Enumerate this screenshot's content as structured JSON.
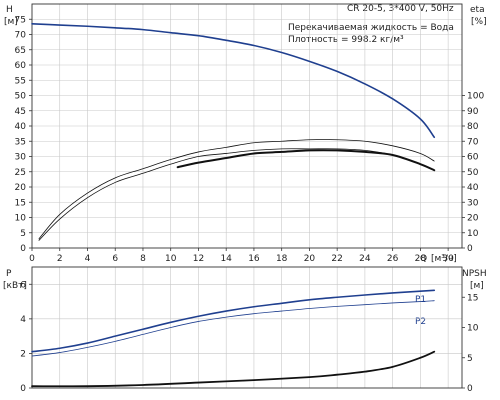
{
  "chart_data": [
    {
      "type": "line",
      "title": "CR 20-5, 3*400 V, 50Hz",
      "annotations": [
        "Перекачиваемая жидкость = Вода",
        "Плотность = 998.2 кг/м³"
      ],
      "xlabel": "Q",
      "xunit": "[м³/ч]",
      "ylabel_left": "H",
      "yunit_left": "[м]",
      "ylabel_right": "eta",
      "yunit_right": "[%]",
      "xlim": [
        0,
        31
      ],
      "ylim_left": [
        0,
        80
      ],
      "ylim_right": [
        0,
        160
      ],
      "x_ticks": [
        0,
        2,
        4,
        6,
        8,
        10,
        12,
        14,
        16,
        18,
        20,
        22,
        24,
        26,
        28,
        30
      ],
      "y_ticks_left": [
        0,
        5,
        10,
        15,
        20,
        25,
        30,
        35,
        40,
        45,
        50,
        55,
        60,
        65,
        70,
        75
      ],
      "y_ticks_right": [
        0,
        10,
        20,
        30,
        40,
        50,
        60,
        70,
        80,
        90,
        100
      ],
      "grid": true,
      "colors": {
        "head": "#1f3f8f",
        "efficiency": "#111111",
        "grid": "#c8c8c8"
      },
      "series": [
        {
          "axis": "left",
          "color": "#1f3f8f",
          "width": 1.6,
          "x": [
            0,
            2,
            4,
            6,
            8,
            10,
            12,
            14,
            16,
            18,
            20,
            22,
            24,
            26,
            28,
            29
          ],
          "y": [
            73.5,
            73.1,
            72.7,
            72.2,
            71.6,
            70.6,
            69.6,
            68.1,
            66.4,
            64.1,
            61.2,
            57.9,
            53.8,
            48.9,
            42.3,
            36.3
          ]
        },
        {
          "axis": "right",
          "color": "#111111",
          "width": 0.8,
          "x": [
            0.5,
            2,
            4,
            6,
            8,
            10,
            12,
            14,
            16,
            18,
            20,
            22,
            24,
            26,
            28,
            29
          ],
          "y": [
            6,
            22,
            36,
            46,
            52,
            58,
            63,
            66,
            69,
            70,
            71,
            71,
            70,
            67,
            62,
            57
          ]
        },
        {
          "axis": "right",
          "color": "#111111",
          "width": 0.8,
          "x": [
            0.5,
            2,
            4,
            6,
            8,
            10,
            12,
            14,
            16,
            18,
            20,
            22,
            24,
            26,
            28,
            29
          ],
          "y": [
            5,
            19,
            33,
            43,
            49,
            55,
            60,
            62,
            64,
            65,
            65,
            65,
            64,
            61,
            55,
            51
          ]
        },
        {
          "axis": "right",
          "color": "#111111",
          "width": 2.0,
          "x": [
            10.5,
            12,
            14,
            16,
            18,
            20,
            22,
            24,
            26,
            28,
            29
          ],
          "y": [
            53,
            56,
            59,
            62,
            63,
            64,
            64,
            63,
            61,
            55,
            51
          ]
        }
      ]
    },
    {
      "type": "line",
      "xlim": [
        0,
        31
      ],
      "ylabel_left": "P",
      "yunit_left": "[кВт]",
      "ylabel_right": "NPSH",
      "yunit_right": "[м]",
      "ylim_left": [
        0,
        7
      ],
      "ylim_right": [
        0,
        20
      ],
      "y_ticks_left": [
        0,
        2,
        4,
        6
      ],
      "y_ticks_right": [
        0,
        5,
        10,
        15
      ],
      "grid": true,
      "colors": {
        "power": "#1f3f8f",
        "npsh": "#111111"
      },
      "series": [
        {
          "name": "P1",
          "axis": "left",
          "color": "#1f3f8f",
          "width": 1.6,
          "x": [
            0,
            2,
            4,
            6,
            8,
            10,
            12,
            14,
            16,
            18,
            20,
            22,
            24,
            26,
            28,
            29
          ],
          "y": [
            2.1,
            2.3,
            2.6,
            3.0,
            3.4,
            3.8,
            4.15,
            4.45,
            4.7,
            4.9,
            5.1,
            5.25,
            5.38,
            5.5,
            5.6,
            5.65
          ]
        },
        {
          "name": "P2",
          "axis": "left",
          "color": "#1f3f8f",
          "width": 0.8,
          "x": [
            0,
            2,
            4,
            6,
            8,
            10,
            12,
            14,
            16,
            18,
            20,
            22,
            24,
            26,
            28,
            29
          ],
          "y": [
            1.85,
            2.05,
            2.35,
            2.7,
            3.1,
            3.5,
            3.85,
            4.1,
            4.3,
            4.45,
            4.6,
            4.72,
            4.82,
            4.92,
            5.0,
            5.05
          ]
        },
        {
          "axis": "right",
          "color": "#111111",
          "width": 1.8,
          "x": [
            0,
            4,
            8,
            12,
            16,
            20,
            22,
            24,
            26,
            28,
            29
          ],
          "y": [
            0.3,
            0.3,
            0.5,
            0.9,
            1.3,
            1.8,
            2.2,
            2.7,
            3.5,
            5.0,
            6.0
          ]
        }
      ]
    }
  ]
}
